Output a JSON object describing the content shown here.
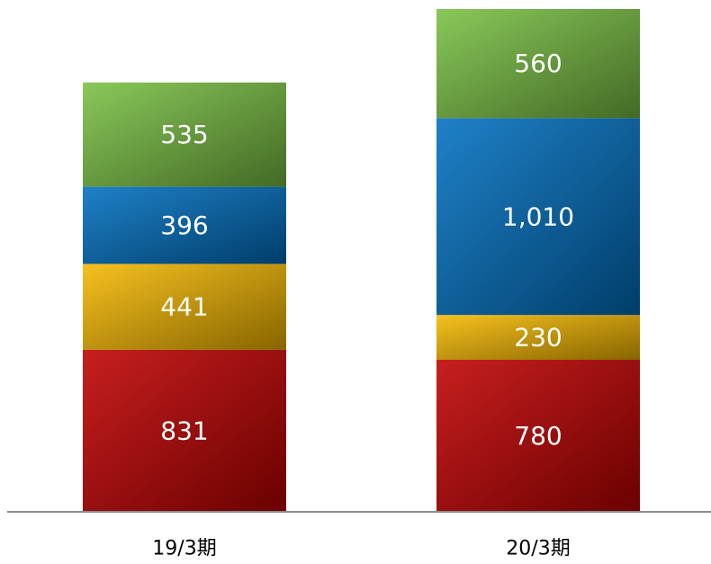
{
  "chart_data": {
    "type": "bar",
    "stacked": true,
    "categories": [
      "19/3期",
      "20/3期"
    ],
    "series": [
      {
        "values": [
          831,
          780
        ],
        "color": "#c00000"
      },
      {
        "values": [
          441,
          230
        ],
        "color": "#f5b800"
      },
      {
        "values": [
          396,
          1010
        ],
        "color": "#0070c0"
      },
      {
        "values": [
          535,
          560
        ],
        "color": "#7ac143"
      }
    ],
    "value_labels": [
      [
        "831",
        "441",
        "396",
        "535"
      ],
      [
        "780",
        "230",
        "1,010",
        "560"
      ]
    ],
    "ylim": [
      0,
      2580
    ],
    "grid": false,
    "legend": "none",
    "title": "",
    "xlabel": "",
    "ylabel": ""
  }
}
